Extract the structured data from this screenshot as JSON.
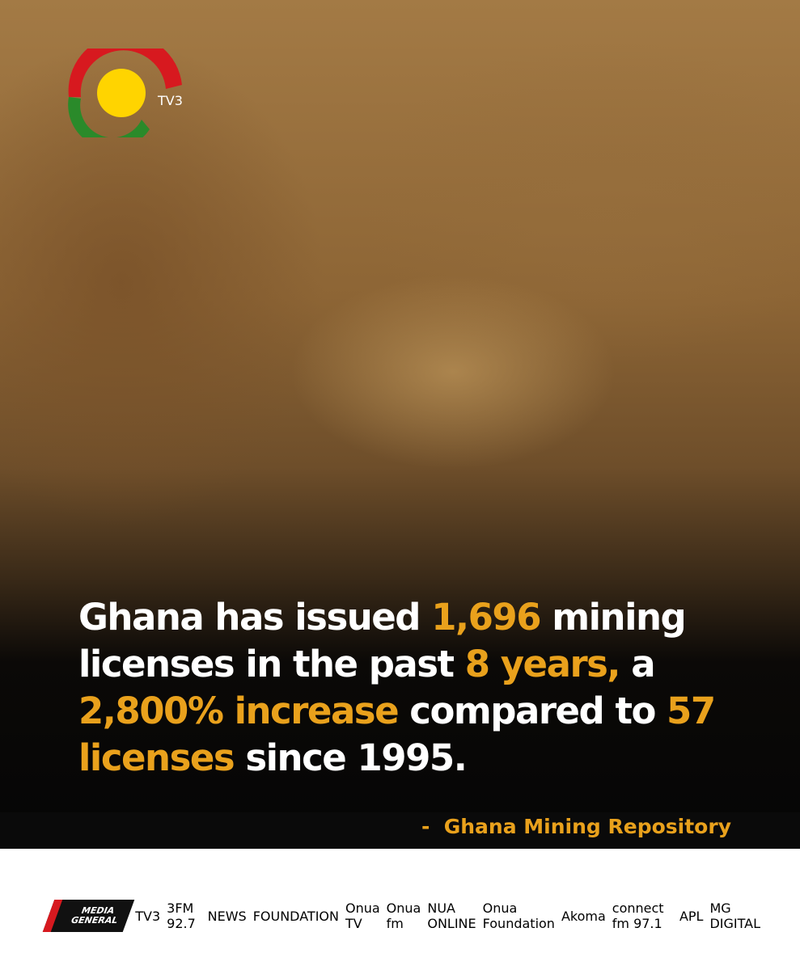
{
  "logo": {
    "label": "TV3"
  },
  "headline": {
    "segments": [
      {
        "text": "Ghana has issued ",
        "highlight": false
      },
      {
        "text": "1,696",
        "highlight": true
      },
      {
        "text": " mining licenses in the past ",
        "highlight": false
      },
      {
        "text": "8 years,",
        "highlight": true
      },
      {
        "text": " a  ",
        "highlight": false
      },
      {
        "text": "2,800% increase",
        "highlight": true
      },
      {
        "text": " compared to ",
        "highlight": false
      },
      {
        "text": "57 licenses",
        "highlight": true
      },
      {
        "text": " since 1995.",
        "highlight": false
      }
    ],
    "colors": {
      "plain": "#ffffff",
      "highlight": "#e9a11c"
    }
  },
  "source": "-  Ghana Mining Repository",
  "footer": {
    "main": [
      "MEDIA",
      "GENERAL"
    ],
    "brands": [
      "TV3",
      "3FM 92.7",
      "NEWS",
      "FOUNDATION",
      "Onua TV",
      "Onua fm",
      "NUA ONLINE",
      "Onua Foundation",
      "Akoma",
      "connect fm 97.1",
      "APL",
      "MG DIGITAL"
    ]
  }
}
